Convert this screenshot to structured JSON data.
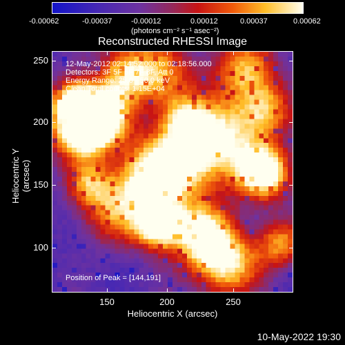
{
  "colorbar": {
    "ticks": [
      "-0.00062",
      "-0.00037",
      "-0.00012",
      "0.00012",
      "0.00037",
      "0.00062"
    ],
    "units": "(photons cm⁻² s⁻¹ asec⁻²)"
  },
  "title": "Reconstructed RHESSI Image",
  "info": {
    "line1": "12-May-2012 02:14:52.000 to 02:18:56.000",
    "line2": "Detectors: 3F 5F 6F 7F 8F, Att 0",
    "line3": "Energy Range: 25.0 - 50.0 keV",
    "line4": "Clean     Total counts: 1.15E+04"
  },
  "peak": "Position of Peak = [144,191]",
  "axes": {
    "xlabel": "Heliocentric X (arcsec)",
    "ylabel": "Heliocentric Y (arcsec)",
    "xticks": [
      "150",
      "200",
      "250"
    ],
    "yticks": [
      "250",
      "200",
      "150",
      "100"
    ]
  },
  "timestamp": "10-May-2022 19:30"
}
